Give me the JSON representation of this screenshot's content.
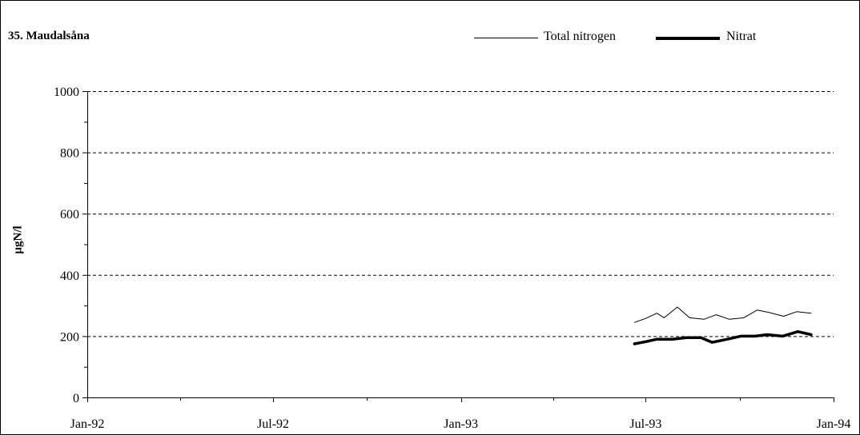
{
  "chart_data": {
    "type": "line",
    "title": "35. Maudalsåna",
    "xlabel": "",
    "ylabel": "µgN/l",
    "ylim": [
      0,
      1000
    ],
    "yticks": [
      0,
      200,
      400,
      600,
      800,
      1000
    ],
    "xlim": [
      "1992-01-01",
      "1994-01-01"
    ],
    "xticks": [
      {
        "date": "1992-01-01",
        "label": "Jan-92"
      },
      {
        "date": "1992-07-01",
        "label": "Jul-92"
      },
      {
        "date": "1993-01-01",
        "label": "Jan-93"
      },
      {
        "date": "1993-07-01",
        "label": "Jul-93"
      },
      {
        "date": "1994-01-01",
        "label": "Jan-94"
      }
    ],
    "grid": "horizontal dashed",
    "legend_position": "top",
    "series": [
      {
        "name": "Total nitrogen",
        "style": "thin",
        "color": "#000000",
        "points": [
          {
            "x": "1993-06-20",
            "y": 245
          },
          {
            "x": "1993-07-01",
            "y": 258
          },
          {
            "x": "1993-07-12",
            "y": 275
          },
          {
            "x": "1993-07-19",
            "y": 260
          },
          {
            "x": "1993-08-01",
            "y": 295
          },
          {
            "x": "1993-08-13",
            "y": 260
          },
          {
            "x": "1993-08-27",
            "y": 255
          },
          {
            "x": "1993-09-08",
            "y": 270
          },
          {
            "x": "1993-09-21",
            "y": 255
          },
          {
            "x": "1993-10-05",
            "y": 260
          },
          {
            "x": "1993-10-18",
            "y": 285
          },
          {
            "x": "1993-10-29",
            "y": 278
          },
          {
            "x": "1993-11-13",
            "y": 265
          },
          {
            "x": "1993-11-26",
            "y": 280
          },
          {
            "x": "1993-12-10",
            "y": 275
          }
        ]
      },
      {
        "name": "Nitrat",
        "style": "thick",
        "color": "#000000",
        "points": [
          {
            "x": "1993-06-20",
            "y": 175
          },
          {
            "x": "1993-07-01",
            "y": 182
          },
          {
            "x": "1993-07-12",
            "y": 190
          },
          {
            "x": "1993-07-27",
            "y": 190
          },
          {
            "x": "1993-08-10",
            "y": 195
          },
          {
            "x": "1993-08-24",
            "y": 195
          },
          {
            "x": "1993-09-04",
            "y": 180
          },
          {
            "x": "1993-09-19",
            "y": 190
          },
          {
            "x": "1993-10-02",
            "y": 200
          },
          {
            "x": "1993-10-16",
            "y": 200
          },
          {
            "x": "1993-10-28",
            "y": 205
          },
          {
            "x": "1993-11-12",
            "y": 200
          },
          {
            "x": "1993-11-27",
            "y": 215
          },
          {
            "x": "1993-12-10",
            "y": 205
          }
        ]
      }
    ]
  }
}
